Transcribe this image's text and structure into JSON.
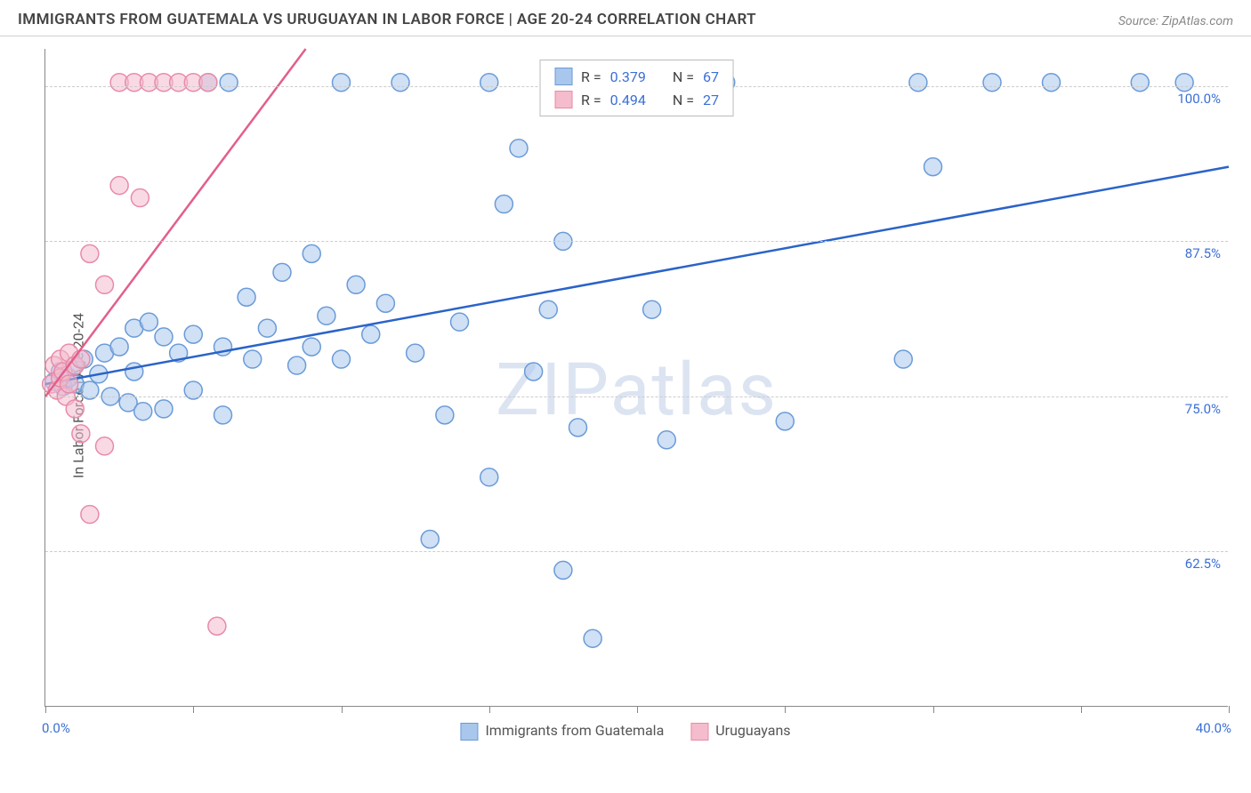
{
  "header": {
    "title": "IMMIGRANTS FROM GUATEMALA VS URUGUAYAN IN LABOR FORCE | AGE 20-24 CORRELATION CHART",
    "source_prefix": "Source: ",
    "source_name": "ZipAtlas.com"
  },
  "chart": {
    "type": "scatter",
    "y_axis_label": "In Labor Force | Age 20-24",
    "watermark": "ZIPatlas",
    "x_domain": [
      0,
      40
    ],
    "y_domain": [
      50,
      103
    ],
    "x_corner_left": "0.0%",
    "x_corner_right": "40.0%",
    "x_tick_positions": [
      0,
      5,
      10,
      15,
      20,
      25,
      30,
      35,
      40
    ],
    "y_gridlines": [
      62.5,
      75.0,
      87.5,
      100.0
    ],
    "y_tick_labels": [
      "62.5%",
      "75.0%",
      "87.5%",
      "100.0%"
    ],
    "background_color": "#ffffff",
    "grid_color": "#cccccc",
    "axis_color": "#888888",
    "series": [
      {
        "name": "Immigrants from Guatemala",
        "fill_color": "#a9c6ec",
        "stroke_color": "#6a9bd8",
        "line_color": "#2a63c9",
        "marker_radius": 10,
        "fill_opacity": 0.55,
        "r_value": "0.379",
        "n_value": "67",
        "points": [
          [
            0.3,
            76.2
          ],
          [
            0.5,
            77.0
          ],
          [
            0.6,
            75.8
          ],
          [
            0.8,
            76.5
          ],
          [
            1.0,
            77.5
          ],
          [
            1.0,
            76.0
          ],
          [
            1.3,
            78.0
          ],
          [
            1.5,
            75.5
          ],
          [
            1.8,
            76.8
          ],
          [
            2.0,
            78.5
          ],
          [
            2.2,
            75.0
          ],
          [
            2.5,
            79.0
          ],
          [
            2.8,
            74.5
          ],
          [
            3.0,
            80.5
          ],
          [
            3.0,
            77.0
          ],
          [
            3.3,
            73.8
          ],
          [
            3.5,
            81.0
          ],
          [
            4.0,
            79.8
          ],
          [
            4.0,
            74.0
          ],
          [
            4.5,
            78.5
          ],
          [
            5.0,
            80.0
          ],
          [
            5.0,
            75.5
          ],
          [
            5.5,
            100.3
          ],
          [
            6.0,
            79.0
          ],
          [
            6.0,
            73.5
          ],
          [
            6.2,
            100.3
          ],
          [
            6.8,
            83.0
          ],
          [
            7.0,
            78.0
          ],
          [
            7.5,
            80.5
          ],
          [
            8.0,
            85.0
          ],
          [
            8.5,
            77.5
          ],
          [
            9.0,
            86.5
          ],
          [
            9.0,
            79.0
          ],
          [
            9.5,
            81.5
          ],
          [
            10.0,
            100.3
          ],
          [
            10.0,
            78.0
          ],
          [
            10.5,
            84.0
          ],
          [
            11.0,
            80.0
          ],
          [
            11.5,
            82.5
          ],
          [
            12.0,
            100.3
          ],
          [
            12.5,
            78.5
          ],
          [
            13.0,
            63.5
          ],
          [
            13.5,
            73.5
          ],
          [
            14.0,
            81.0
          ],
          [
            15.0,
            100.3
          ],
          [
            15.0,
            68.5
          ],
          [
            15.5,
            90.5
          ],
          [
            16.0,
            95.0
          ],
          [
            16.5,
            77.0
          ],
          [
            17.0,
            82.0
          ],
          [
            17.5,
            87.5
          ],
          [
            17.5,
            61.0
          ],
          [
            18.0,
            100.3
          ],
          [
            18.0,
            72.5
          ],
          [
            18.5,
            55.5
          ],
          [
            20.0,
            100.3
          ],
          [
            20.5,
            82.0
          ],
          [
            21.0,
            71.5
          ],
          [
            23.0,
            100.3
          ],
          [
            25.0,
            73.0
          ],
          [
            29.0,
            78.0
          ],
          [
            29.5,
            100.3
          ],
          [
            30.0,
            93.5
          ],
          [
            32.0,
            100.3
          ],
          [
            34.0,
            100.3
          ],
          [
            37.0,
            100.3
          ],
          [
            38.5,
            100.3
          ]
        ],
        "line": {
          "x1": 0,
          "y1": 76.0,
          "x2": 40,
          "y2": 93.5
        }
      },
      {
        "name": "Uruguayans",
        "fill_color": "#f4bccd",
        "stroke_color": "#e88ba8",
        "line_color": "#e35f89",
        "marker_radius": 10,
        "fill_opacity": 0.55,
        "r_value": "0.494",
        "n_value": "27",
        "points": [
          [
            0.2,
            76.0
          ],
          [
            0.3,
            77.5
          ],
          [
            0.4,
            75.5
          ],
          [
            0.5,
            78.0
          ],
          [
            0.5,
            76.5
          ],
          [
            0.6,
            77.0
          ],
          [
            0.7,
            75.0
          ],
          [
            0.8,
            78.5
          ],
          [
            0.8,
            76.0
          ],
          [
            1.0,
            74.0
          ],
          [
            1.0,
            77.5
          ],
          [
            1.2,
            72.0
          ],
          [
            1.2,
            78.0
          ],
          [
            1.5,
            65.5
          ],
          [
            1.5,
            86.5
          ],
          [
            2.0,
            84.0
          ],
          [
            2.0,
            71.0
          ],
          [
            2.5,
            92.0
          ],
          [
            2.5,
            100.3
          ],
          [
            3.0,
            100.3
          ],
          [
            3.2,
            91.0
          ],
          [
            3.5,
            100.3
          ],
          [
            4.0,
            100.3
          ],
          [
            4.5,
            100.3
          ],
          [
            5.0,
            100.3
          ],
          [
            5.5,
            100.3
          ],
          [
            5.8,
            56.5
          ]
        ],
        "line": {
          "x1": 0,
          "y1": 75.0,
          "x2": 8.8,
          "y2": 103
        }
      }
    ],
    "legend_top": {
      "rows": [
        {
          "sw_fill": "#a9c6ec",
          "sw_stroke": "#6a9bd8",
          "r_label": "R =",
          "r_val": "0.379",
          "n_label": "N =",
          "n_val": "67"
        },
        {
          "sw_fill": "#f4bccd",
          "sw_stroke": "#e88ba8",
          "r_label": "R =",
          "r_val": "0.494",
          "n_label": "N =",
          "n_val": "27"
        }
      ]
    },
    "legend_bottom": [
      {
        "sw_fill": "#a9c6ec",
        "sw_stroke": "#6a9bd8",
        "label": "Immigrants from Guatemala"
      },
      {
        "sw_fill": "#f4bccd",
        "sw_stroke": "#e88ba8",
        "label": "Uruguayans"
      }
    ]
  }
}
